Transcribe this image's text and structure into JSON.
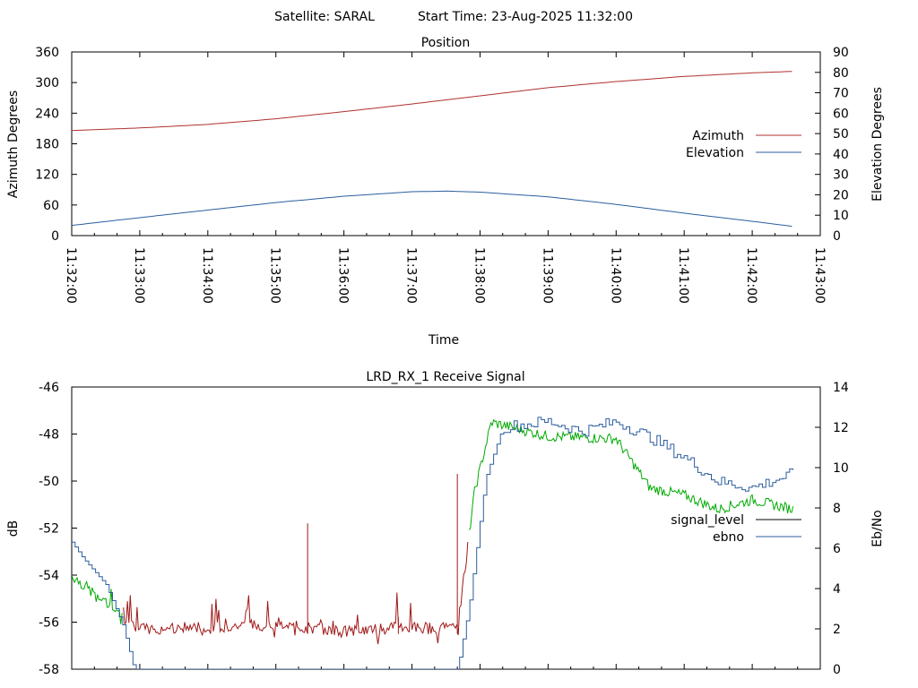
{
  "header": {
    "satellite": "Satellite: SARAL",
    "start_time": "Start Time: 23-Aug-2025 11:32:00"
  },
  "colors": {
    "azimuth": "#b03030",
    "elevation": "#2c5e9e",
    "signal_noise": "#a01818",
    "signal_level": "#000000",
    "ebno_strong": "#00aa00",
    "ebno": "#2c5e9e"
  },
  "chart_data": [
    {
      "type": "line",
      "title": "Position",
      "xlabel": "Time",
      "ylabel": "Azimuth Degrees",
      "y2label": "Elevation Degrees",
      "x_ticks": [
        "11:32:00",
        "11:33:00",
        "11:34:00",
        "11:35:00",
        "11:36:00",
        "11:37:00",
        "11:38:00",
        "11:39:00",
        "11:40:00",
        "11:41:00",
        "11:42:00",
        "11:43:00"
      ],
      "ylim": [
        0,
        360
      ],
      "y_ticks": [
        0,
        60,
        120,
        180,
        240,
        300,
        360
      ],
      "y2lim": [
        0,
        90
      ],
      "y2_ticks": [
        0,
        10,
        20,
        30,
        40,
        50,
        60,
        70,
        80,
        90
      ],
      "legend_position": "right",
      "series": [
        {
          "name": "Azimuth",
          "axis": "y",
          "x": [
            "11:32:00",
            "11:33:00",
            "11:34:00",
            "11:35:00",
            "11:36:00",
            "11:37:00",
            "11:38:00",
            "11:39:00",
            "11:40:00",
            "11:41:00",
            "11:42:00",
            "11:42:36"
          ],
          "values": [
            206,
            211,
            218,
            229,
            243,
            258,
            274,
            290,
            302,
            312,
            319,
            322
          ]
        },
        {
          "name": "Elevation",
          "axis": "y2",
          "x": [
            "11:32:00",
            "11:33:00",
            "11:34:00",
            "11:35:00",
            "11:36:00",
            "11:37:00",
            "11:37:30",
            "11:38:00",
            "11:39:00",
            "11:40:00",
            "11:41:00",
            "11:42:00",
            "11:42:36"
          ],
          "values": [
            5,
            8.8,
            12.5,
            16.2,
            19.3,
            21.5,
            21.8,
            21.3,
            19,
            15.3,
            11,
            7,
            4.5
          ]
        }
      ]
    },
    {
      "type": "line",
      "title": "LRD_RX_1 Receive Signal",
      "ylabel": "dB",
      "y2label": "Eb/No",
      "ylim": [
        -58,
        -46
      ],
      "y_ticks": [
        -58,
        -56,
        -54,
        -52,
        -50,
        -48,
        -46
      ],
      "y2lim": [
        0,
        14
      ],
      "y2_ticks": [
        0,
        2,
        4,
        6,
        8,
        10,
        12,
        14
      ],
      "legend_position": "right",
      "series": [
        {
          "name": "signal_level",
          "axis": "y",
          "x": [
            "11:32:00",
            "11:32:45",
            "11:33:00",
            "11:34:00",
            "11:35:00",
            "11:36:00",
            "11:37:00",
            "11:37:40",
            "11:37:55",
            "11:38:10",
            "11:39:00",
            "11:40:00",
            "11:40:30",
            "11:41:00",
            "11:41:30",
            "11:42:00",
            "11:42:36"
          ],
          "values": [
            -54,
            -55.8,
            -56.3,
            -56.2,
            -56.1,
            -56.4,
            -56.2,
            -56.3,
            -50.5,
            -47.5,
            -48.1,
            -48.2,
            -50.3,
            -50.6,
            -51.2,
            -50.8,
            -51.2
          ]
        },
        {
          "name": "ebno",
          "axis": "y2",
          "x": [
            "11:32:00",
            "11:32:10",
            "11:32:30",
            "11:32:45",
            "11:32:55",
            "11:37:40",
            "11:37:50",
            "11:38:05",
            "11:38:20",
            "11:39:00",
            "11:39:30",
            "11:40:00",
            "11:40:30",
            "11:41:00",
            "11:41:30",
            "11:42:00",
            "11:42:36"
          ],
          "values": [
            6.3,
            5.5,
            4.2,
            2.2,
            0,
            0,
            3,
            9.5,
            12,
            12.3,
            11.8,
            12.3,
            11.5,
            10.5,
            9.3,
            9.0,
            9.7
          ]
        }
      ]
    }
  ]
}
